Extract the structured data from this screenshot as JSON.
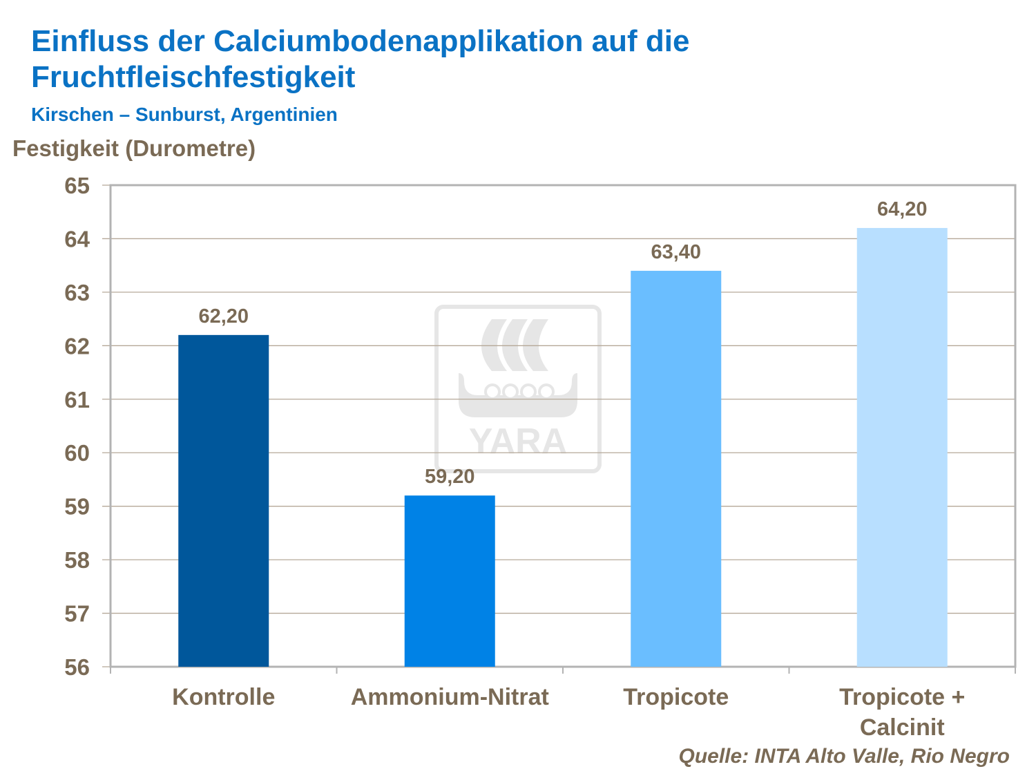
{
  "chart_data": {
    "type": "bar",
    "title": "Einfluss der Calciumbodenapplikation auf die Fruchtfleischfestigkeit",
    "subtitle": "Kirschen – Sunburst, Argentinien",
    "xlabel": "",
    "ylabel": "Festigkeit (Durometre)",
    "ylim": [
      56,
      65
    ],
    "yticks": [
      "56",
      "57",
      "58",
      "59",
      "60",
      "61",
      "62",
      "63",
      "64",
      "65"
    ],
    "grid": true,
    "categories": [
      "Kontrolle",
      "Ammonium-Nitrat",
      "Tropicote",
      "Tropicote + Calcinit"
    ],
    "category_lines": [
      [
        "Kontrolle"
      ],
      [
        "Ammonium-Nitrat"
      ],
      [
        "Tropicote"
      ],
      [
        "Tropicote +",
        "Calcinit"
      ]
    ],
    "values": [
      62.2,
      59.2,
      63.4,
      64.2
    ],
    "data_labels": [
      "62,20",
      "59,20",
      "63,40",
      "64,20"
    ],
    "colors": [
      "#00579b",
      "#0082e6",
      "#6abeff",
      "#b8dfff"
    ],
    "source": "Quelle: INTA Alto Valle, Rio Negro",
    "watermark": "YARA"
  }
}
